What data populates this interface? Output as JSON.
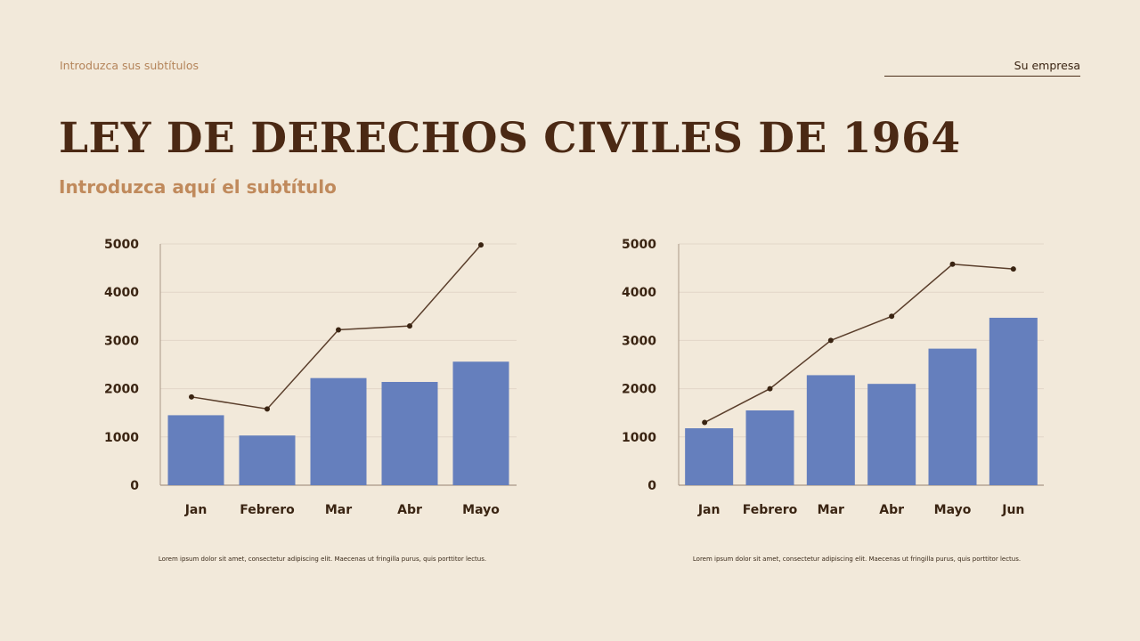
{
  "header": {
    "tagline": "Introduzca sus subtítulos",
    "company": "Su empresa"
  },
  "title": "LEY DE DERECHOS CIVILES DE 1964",
  "subtitle": "Introduzca aquí el subtítulo",
  "captions": [
    "Lorem ipsum dolor sit amet, consectetur adipiscing elit. Maecenas ut fringilla purus, quis porttitor lectus.",
    "Lorem ipsum dolor sit amet, consectetur adipiscing elit. Maecenas ut fringilla purus, quis porttitor lectus."
  ],
  "colors": {
    "bar": "#657fbd",
    "line": "#5a3e2b",
    "axis_text": "#3a2412",
    "grid": "#e2d6c8"
  },
  "chart_data": [
    {
      "type": "bar",
      "categories": [
        "Jan",
        "Febrero",
        "Mar",
        "Abr",
        "Mayo"
      ],
      "series": [
        {
          "type": "bar",
          "values": [
            1450,
            1030,
            2220,
            2140,
            2560
          ]
        },
        {
          "type": "line",
          "values": [
            1830,
            1580,
            3220,
            3300,
            4980
          ]
        }
      ],
      "yticks": [
        0,
        1000,
        2000,
        3000,
        4000,
        5000
      ],
      "ylim": [
        0,
        5000
      ],
      "grid": true
    },
    {
      "type": "bar",
      "categories": [
        "Jan",
        "Febrero",
        "Mar",
        "Abr",
        "Mayo",
        "Jun"
      ],
      "series": [
        {
          "type": "bar",
          "values": [
            1180,
            1550,
            2280,
            2100,
            2830,
            3470
          ]
        },
        {
          "type": "line",
          "values": [
            1300,
            2000,
            3000,
            3500,
            4580,
            4480
          ]
        }
      ],
      "yticks": [
        0,
        1000,
        2000,
        3000,
        4000,
        5000
      ],
      "ylim": [
        0,
        5000
      ],
      "grid": true
    }
  ]
}
